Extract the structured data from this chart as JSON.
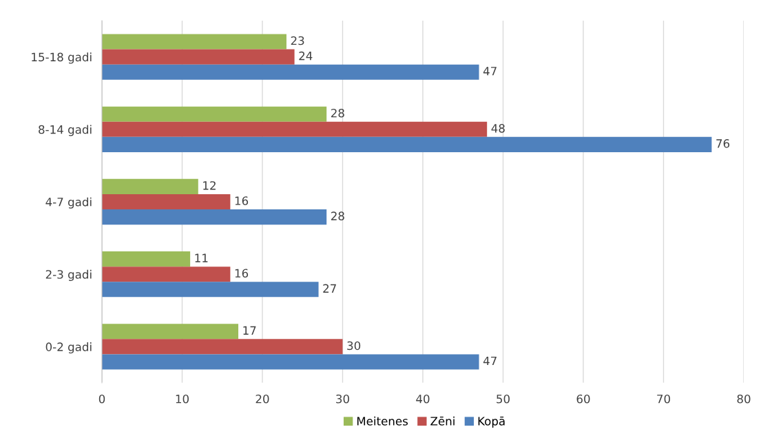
{
  "chart_data": {
    "type": "bar",
    "orientation": "horizontal",
    "categories": [
      "15-18 gadi",
      "8-14 gadi",
      "4-7 gadi",
      "2-3 gadi",
      "0-2 gadi"
    ],
    "series": [
      {
        "name": "Meitenes",
        "color": "#9bbb59",
        "values": [
          23,
          28,
          12,
          11,
          17
        ]
      },
      {
        "name": "Zēni",
        "color": "#c0504d",
        "values": [
          24,
          48,
          16,
          16,
          30
        ]
      },
      {
        "name": "Kopā",
        "color": "#4f81bd",
        "values": [
          47,
          76,
          28,
          27,
          47
        ]
      }
    ],
    "xlim": [
      0,
      80
    ],
    "xticks": [
      0,
      10,
      20,
      30,
      40,
      50,
      60,
      70,
      80
    ],
    "grid": "x",
    "legend": "bottom",
    "data_labels": true
  }
}
